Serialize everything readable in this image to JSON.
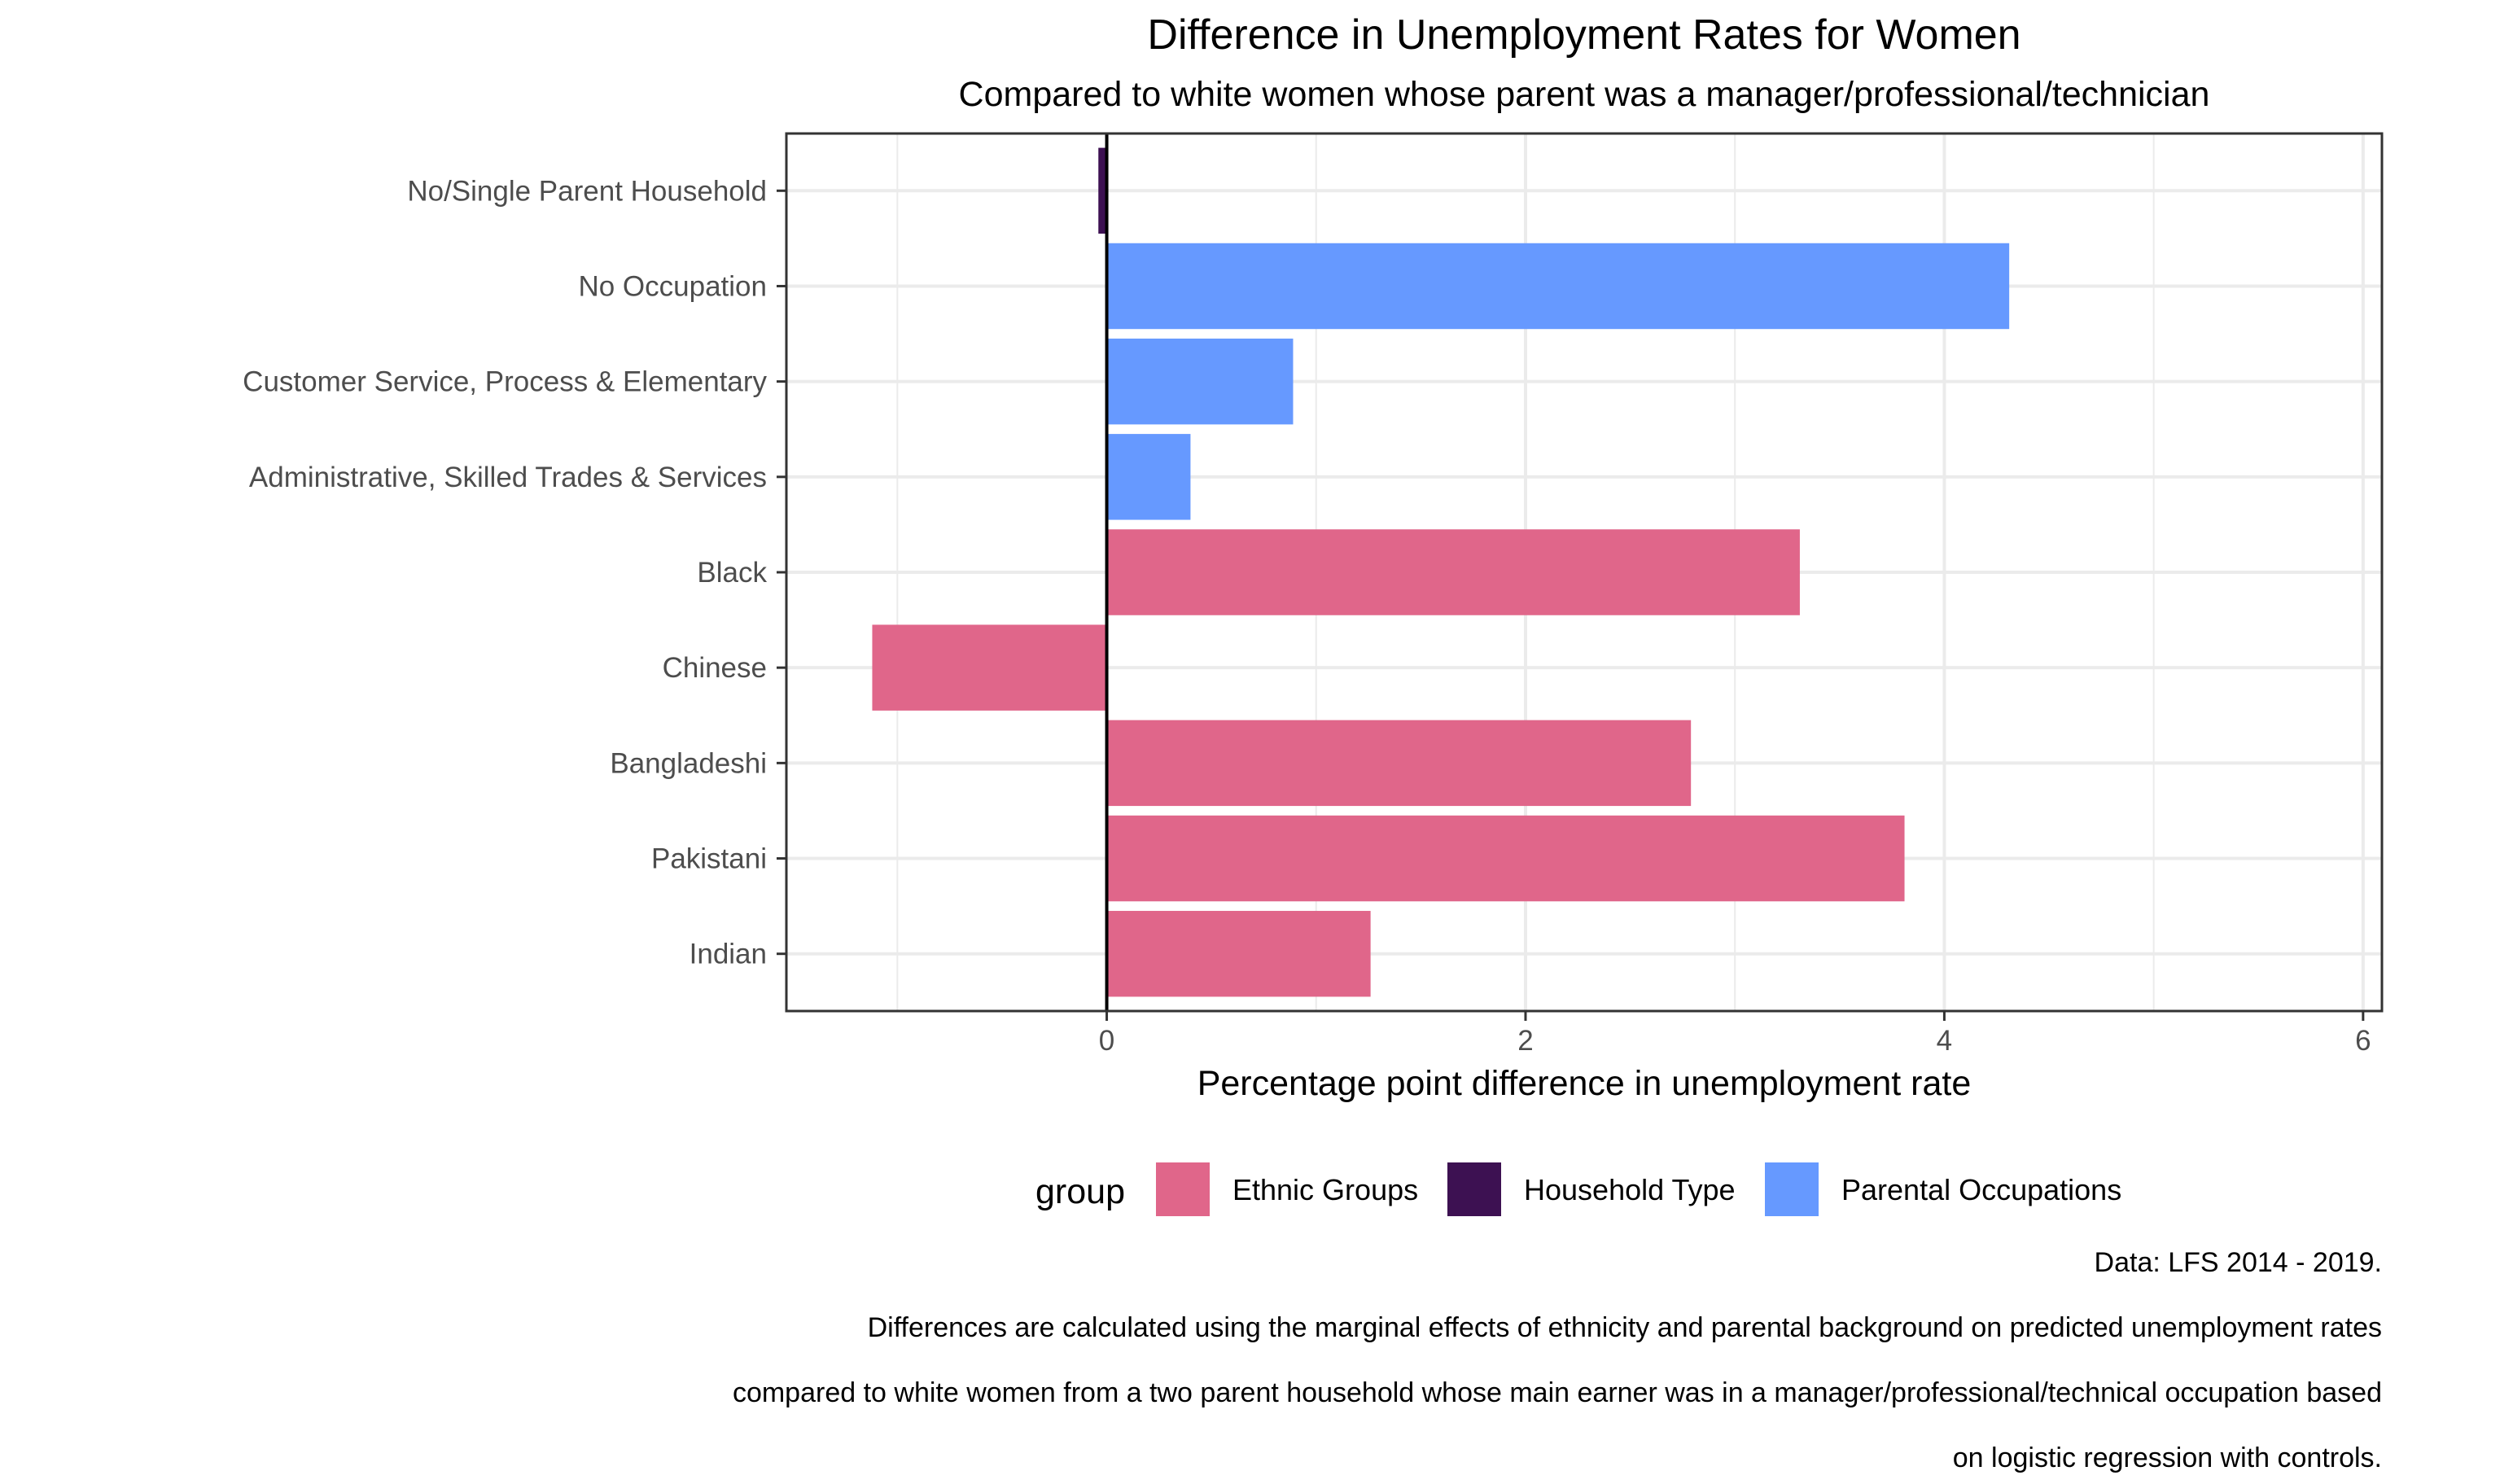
{
  "chart_data": {
    "type": "bar",
    "orientation": "horizontal",
    "title": "Difference in Unemployment Rates for Women",
    "subtitle": "Compared to white women whose parent was a manager/professional/technician",
    "xlabel": "Percentage point difference in unemployment rate",
    "ylabel": "",
    "xlim": [
      -1.53,
      6.09
    ],
    "x_ticks": [
      0,
      2,
      4,
      6
    ],
    "grid": true,
    "legend": {
      "title": "group",
      "position": "bottom",
      "entries": [
        {
          "name": "Ethnic Groups",
          "color": "#E0668A"
        },
        {
          "name": "Household Type",
          "color": "#3D1152"
        },
        {
          "name": "Parental Occupations",
          "color": "#6699FF"
        }
      ]
    },
    "categories": [
      "No/Single Parent Household",
      "No Occupation",
      "Customer Service, Process & Elementary",
      "Administrative, Skilled Trades & Services",
      "Black",
      "Chinese",
      "Bangladeshi",
      "Pakistani",
      "Indian"
    ],
    "values": [
      -0.04,
      4.31,
      0.89,
      0.4,
      3.31,
      -1.12,
      2.79,
      3.81,
      1.26
    ],
    "groups": [
      "Household Type",
      "Parental Occupations",
      "Parental Occupations",
      "Parental Occupations",
      "Ethnic Groups",
      "Ethnic Groups",
      "Ethnic Groups",
      "Ethnic Groups",
      "Ethnic Groups"
    ],
    "caption": [
      "Data: LFS 2014 - 2019.",
      "Differences are calculated using the marginal effects of ethnicity and parental background on predicted  unemployment rates",
      "compared to white women from a two parent household whose main earner was in a manager/professional/technical occupation based",
      "on logistic regression with controls."
    ]
  }
}
